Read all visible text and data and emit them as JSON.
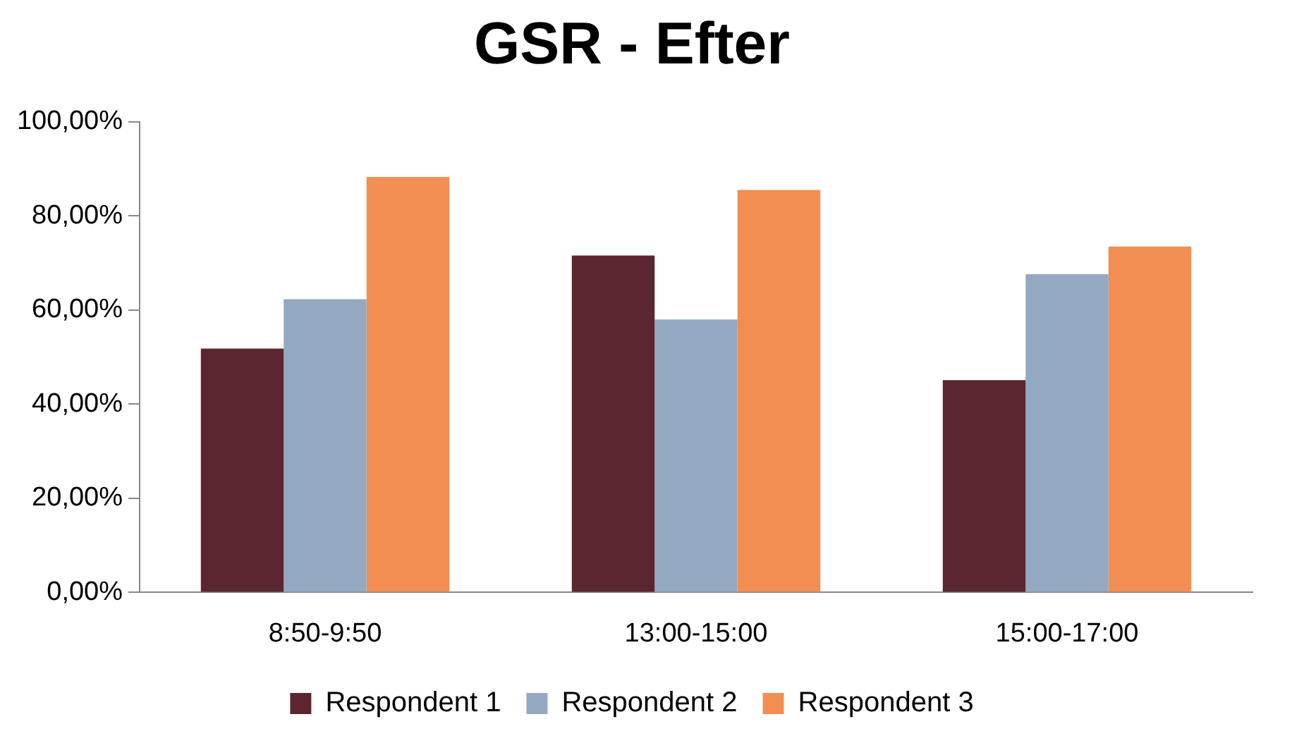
{
  "chart_data": {
    "type": "bar",
    "title": "GSR - Efter",
    "categories": [
      "8:50-9:50",
      "13:00-15:00",
      "15:00-17:00"
    ],
    "series": [
      {
        "name": "Respondent 1",
        "color": "#5c2630",
        "values": [
          51.8,
          71.6,
          45.1
        ]
      },
      {
        "name": "Respondent 2",
        "color": "#93a9c1",
        "values": [
          62.3,
          58.0,
          67.6
        ]
      },
      {
        "name": "Respondent 3",
        "color": "#f28e52",
        "values": [
          88.3,
          85.5,
          73.5
        ]
      }
    ],
    "ylim": [
      0,
      100
    ],
    "yticks": [
      {
        "value": 0,
        "label": "0,00%"
      },
      {
        "value": 20,
        "label": "20,00%"
      },
      {
        "value": 40,
        "label": "40,00%"
      },
      {
        "value": 60,
        "label": "60,00%"
      },
      {
        "value": 80,
        "label": "80,00%"
      },
      {
        "value": 100,
        "label": "100,00%"
      }
    ],
    "grid": false,
    "legend": "bottom"
  }
}
